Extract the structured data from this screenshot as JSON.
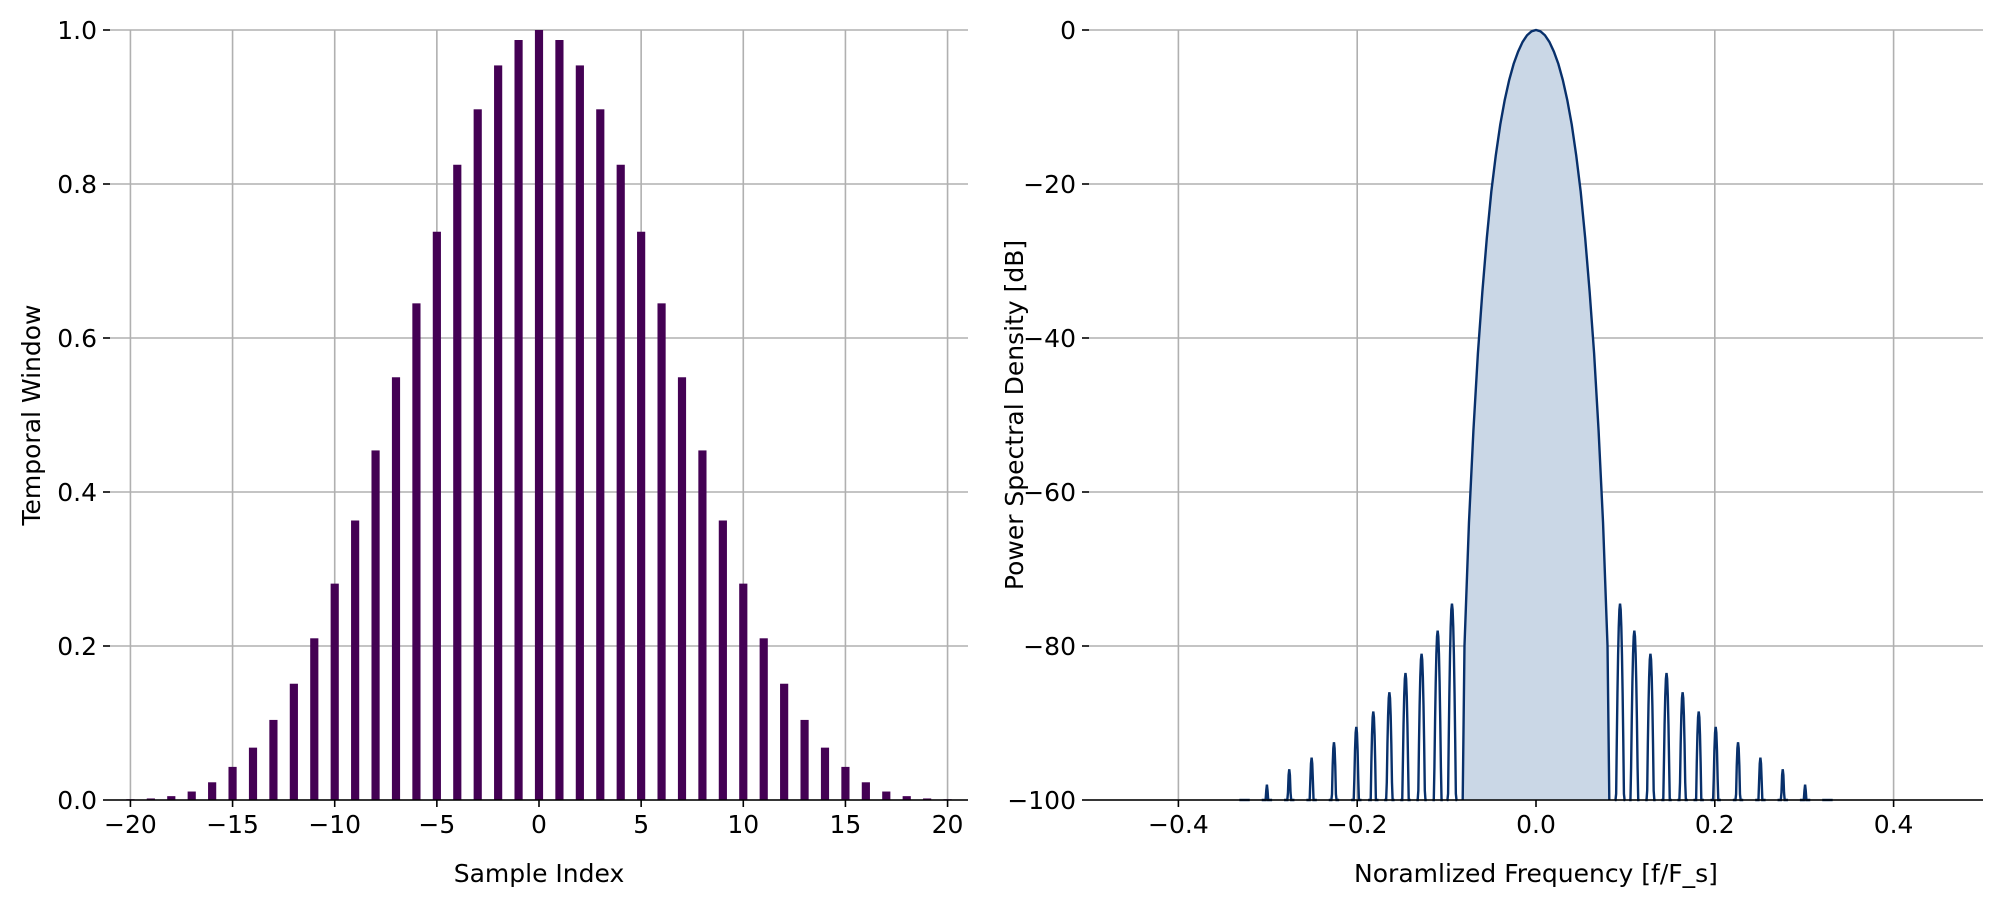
{
  "chart_data": [
    {
      "type": "bar",
      "xlabel": "Sample Index",
      "ylabel": "Temporal Window",
      "xlim": [
        -21,
        21
      ],
      "ylim": [
        0,
        1
      ],
      "xticks": [
        -20,
        -15,
        -10,
        -5,
        0,
        5,
        10,
        15,
        20
      ],
      "xtick_labels": [
        "−20",
        "−15",
        "−10",
        "−5",
        "0",
        "5",
        "10",
        "15",
        "20"
      ],
      "yticks": [
        0,
        0.2,
        0.4,
        0.6,
        0.8,
        1.0
      ],
      "ytick_labels": [
        "0.0",
        "0.2",
        "0.4",
        "0.6",
        "0.8",
        "1.0"
      ],
      "grid": true,
      "color": "#440154",
      "bar_width": 0.4,
      "x": [
        -20,
        -19,
        -18,
        -17,
        -16,
        -15,
        -14,
        -13,
        -12,
        -11,
        -10,
        -9,
        -8,
        -7,
        -6,
        -5,
        -4,
        -3,
        -2,
        -1,
        0,
        1,
        2,
        3,
        4,
        5,
        6,
        7,
        8,
        9,
        10,
        11,
        12,
        13,
        14,
        15,
        16,
        17,
        18,
        19,
        20
      ],
      "values": [
        0.001,
        0.002,
        0.005,
        0.011,
        0.023,
        0.043,
        0.068,
        0.104,
        0.151,
        0.21,
        0.281,
        0.363,
        0.454,
        0.549,
        0.645,
        0.738,
        0.825,
        0.897,
        0.954,
        0.987,
        1.0,
        0.987,
        0.954,
        0.897,
        0.825,
        0.738,
        0.645,
        0.549,
        0.454,
        0.363,
        0.281,
        0.21,
        0.151,
        0.104,
        0.068,
        0.043,
        0.023,
        0.011,
        0.005,
        0.002,
        0.001
      ]
    },
    {
      "type": "area",
      "xlabel": "Noramlized Frequency [f/F_s]",
      "ylabel": "Power Spectral Density [dB]",
      "xlim": [
        -0.5,
        0.5
      ],
      "ylim": [
        -100,
        0
      ],
      "xticks": [
        -0.4,
        -0.2,
        0.0,
        0.2,
        0.4
      ],
      "xtick_labels": [
        "−0.4",
        "−0.2",
        "0.0",
        "0.2",
        "0.4"
      ],
      "yticks": [
        -100,
        -80,
        -60,
        -40,
        -20,
        0
      ],
      "ytick_labels": [
        "−100",
        "−80",
        "−60",
        "−40",
        "−20",
        "0"
      ],
      "grid": true,
      "line_color": "#08306b",
      "fill_color": "#cad7e6",
      "series": [
        {
          "main_lobe": {
            "x": [
              -0.082,
              -0.08,
              -0.075,
              -0.07,
              -0.065,
              -0.06,
              -0.055,
              -0.05,
              -0.045,
              -0.04,
              -0.035,
              -0.03,
              -0.025,
              -0.02,
              -0.015,
              -0.01,
              -0.005,
              0.0,
              0.005,
              0.01,
              0.015,
              0.02,
              0.025,
              0.03,
              0.035,
              0.04,
              0.045,
              0.05,
              0.055,
              0.06,
              0.065,
              0.07,
              0.075,
              0.08,
              0.082
            ],
            "y": [
              -100,
              -80,
              -64,
              -52,
              -42,
              -34,
              -27,
              -21,
              -16.3,
              -12.3,
              -9.1,
              -6.5,
              -4.4,
              -2.8,
              -1.55,
              -0.68,
              -0.17,
              0,
              -0.17,
              -0.68,
              -1.55,
              -2.8,
              -4.4,
              -6.5,
              -9.1,
              -12.3,
              -16.3,
              -21,
              -27,
              -34,
              -42,
              -52,
              -64,
              -80,
              -100
            ]
          },
          "sidelobes": [
            {
              "center": -0.326,
              "peak": -100.3
            },
            {
              "center": -0.301,
              "peak": -98.0
            },
            {
              "center": -0.276,
              "peak": -96.0
            },
            {
              "center": -0.251,
              "peak": -94.5
            },
            {
              "center": -0.226,
              "peak": -92.5
            },
            {
              "center": -0.201,
              "peak": -90.5
            },
            {
              "center": -0.182,
              "peak": -88.5
            },
            {
              "center": -0.164,
              "peak": -86.0
            },
            {
              "center": -0.146,
              "peak": -83.5
            },
            {
              "center": -0.128,
              "peak": -81.0
            },
            {
              "center": -0.11,
              "peak": -78.0
            },
            {
              "center": -0.094,
              "peak": -74.5
            },
            {
              "center": 0.094,
              "peak": -74.5
            },
            {
              "center": 0.11,
              "peak": -78.0
            },
            {
              "center": 0.128,
              "peak": -81.0
            },
            {
              "center": 0.146,
              "peak": -83.5
            },
            {
              "center": 0.164,
              "peak": -86.0
            },
            {
              "center": 0.182,
              "peak": -88.5
            },
            {
              "center": 0.201,
              "peak": -90.5
            },
            {
              "center": 0.226,
              "peak": -92.5
            },
            {
              "center": 0.251,
              "peak": -94.5
            },
            {
              "center": 0.276,
              "peak": -96.0
            },
            {
              "center": 0.301,
              "peak": -98.0
            },
            {
              "center": 0.326,
              "peak": -100.3
            }
          ]
        }
      ]
    }
  ]
}
